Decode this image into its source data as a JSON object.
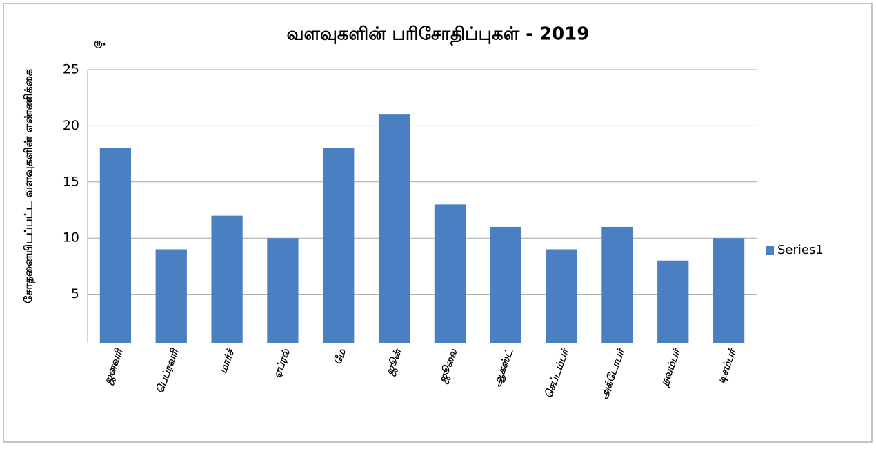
{
  "chart_data": {
    "type": "bar",
    "title": "வளவுகளின் பரிசோதிப்புகள் - 2019",
    "y_label": "சோதனையிடப்பட்ட வளவுகளின் எண்ணிக்கை",
    "unit_label": "ரூ.",
    "categories": [
      "ஜனவரி",
      "பெப்ரவரி",
      "மார்ச்",
      "ஏப்ரல்",
      "மே",
      "ஜூன்",
      "ஜூலை",
      "ஆகஸ்ட்",
      "செப்டம்பர்",
      "அக்டோபர்",
      "நவம்பர்",
      "டிசம்பர்"
    ],
    "series": [
      {
        "name": "Series1",
        "color": "#4a80c2",
        "values": [
          18,
          9,
          12,
          10,
          18,
          21,
          13,
          11,
          9,
          11,
          8,
          10
        ]
      }
    ],
    "ylim": [
      0,
      25
    ],
    "yticks": [
      5,
      10,
      15,
      20,
      25
    ],
    "grid": true,
    "legend": "right"
  }
}
